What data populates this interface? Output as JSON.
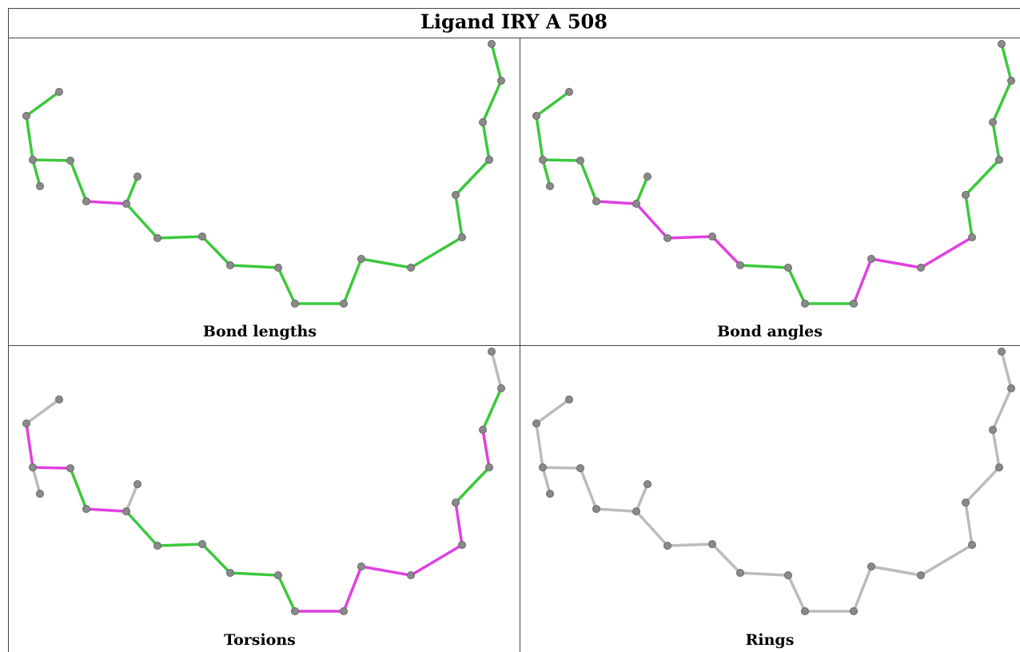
{
  "title": "Ligand IRY A 508",
  "panels": [
    {
      "label": "Bond lengths"
    },
    {
      "label": "Bond angles"
    },
    {
      "label": "Torsions"
    },
    {
      "label": "Rings"
    }
  ]
}
